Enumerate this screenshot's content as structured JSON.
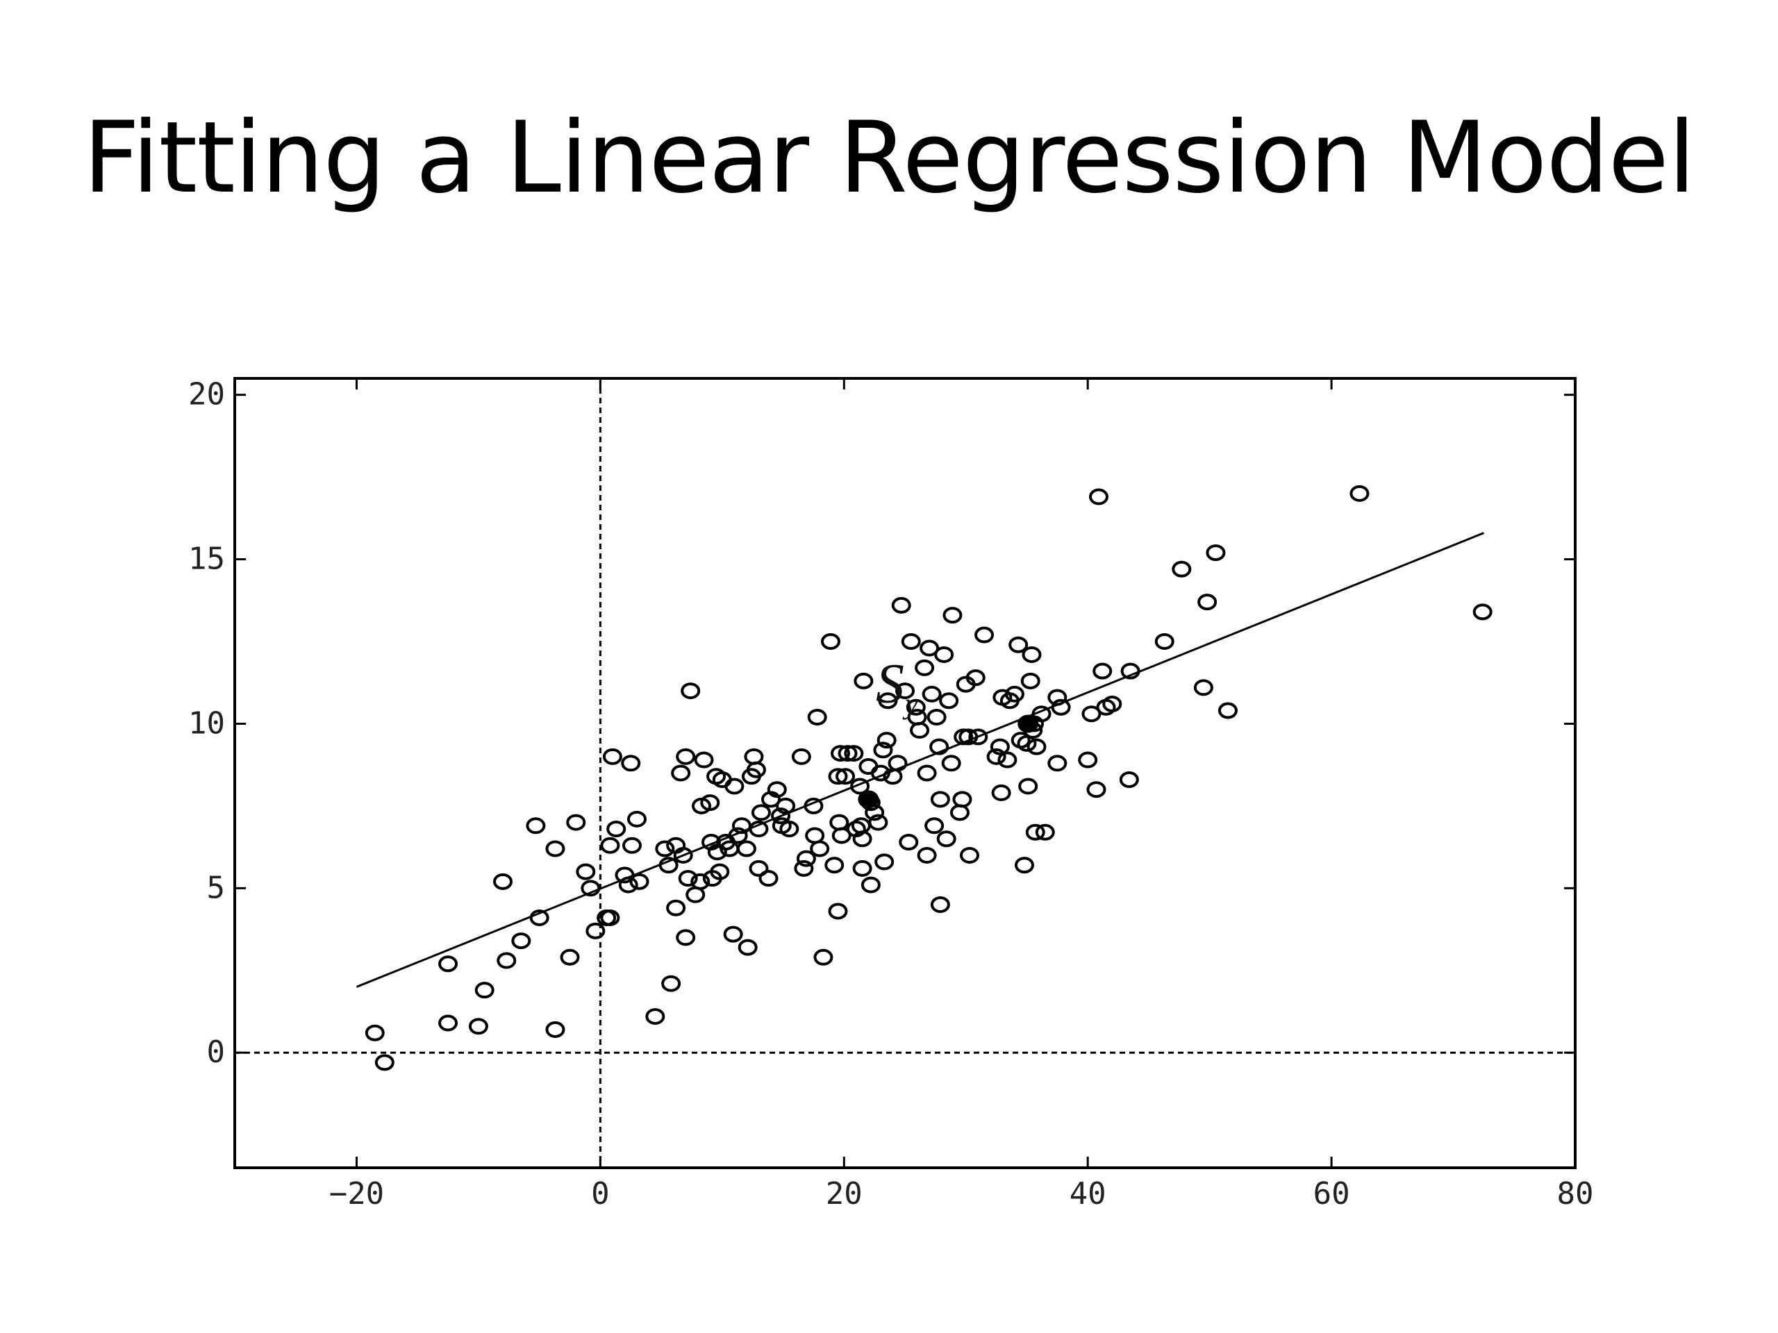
{
  "slide": {
    "title": "Fitting a Linear Regression Model"
  },
  "chart_data": {
    "type": "scatter",
    "xlim": [
      -30,
      80
    ],
    "ylim": [
      -3.5,
      20.5
    ],
    "x_ticks": [
      -20,
      0,
      20,
      40,
      60,
      80
    ],
    "y_ticks": [
      0,
      5,
      10,
      15,
      20
    ],
    "grid": false,
    "reference_lines": {
      "x": 0,
      "y": 0,
      "style": "dotted"
    },
    "annotation": {
      "text": "S",
      "subscript": "y",
      "x": 25,
      "y": 11.5
    },
    "regression_line": {
      "x1": -20,
      "y1": 2.0,
      "x2": 72.5,
      "y2": 15.8
    },
    "series": [
      {
        "points": [
          [
            -18.5,
            0.6
          ],
          [
            -17.7,
            -0.3
          ],
          [
            -12.5,
            2.7
          ],
          [
            -12.5,
            0.9
          ],
          [
            -10.0,
            0.8
          ],
          [
            -9.5,
            1.9
          ],
          [
            -8.0,
            5.2
          ],
          [
            -7.7,
            2.8
          ],
          [
            -6.5,
            3.4
          ],
          [
            -5.3,
            6.9
          ],
          [
            -5.0,
            4.1
          ],
          [
            -3.7,
            6.2
          ],
          [
            -3.7,
            0.7
          ],
          [
            -2.5,
            2.9
          ],
          [
            -2.0,
            7.0
          ],
          [
            -1.2,
            5.5
          ],
          [
            -0.8,
            5.0
          ],
          [
            -0.4,
            3.7
          ],
          [
            0.5,
            4.1
          ],
          [
            0.8,
            4.1
          ],
          [
            0.8,
            6.3
          ],
          [
            1.0,
            9.0
          ],
          [
            1.3,
            6.8
          ],
          [
            2.0,
            5.4
          ],
          [
            2.3,
            5.1
          ],
          [
            2.5,
            8.8
          ],
          [
            2.6,
            6.3
          ],
          [
            3.0,
            7.1
          ],
          [
            3.2,
            5.2
          ],
          [
            4.5,
            1.1
          ],
          [
            5.3,
            6.2
          ],
          [
            5.6,
            5.7
          ],
          [
            5.8,
            2.1
          ],
          [
            6.2,
            4.4
          ],
          [
            6.2,
            6.3
          ],
          [
            6.6,
            8.5
          ],
          [
            6.8,
            6.0
          ],
          [
            7.0,
            3.5
          ],
          [
            7.0,
            9.0
          ],
          [
            7.2,
            5.3
          ],
          [
            7.4,
            11.0
          ],
          [
            7.8,
            4.8
          ],
          [
            8.2,
            5.2
          ],
          [
            8.3,
            7.5
          ],
          [
            8.5,
            8.9
          ],
          [
            9.0,
            7.6
          ],
          [
            9.1,
            6.4
          ],
          [
            9.2,
            5.3
          ],
          [
            9.5,
            8.4
          ],
          [
            9.6,
            6.1
          ],
          [
            9.8,
            5.5
          ],
          [
            10.0,
            8.3
          ],
          [
            10.3,
            6.4
          ],
          [
            10.6,
            6.2
          ],
          [
            10.9,
            3.6
          ],
          [
            11.0,
            8.1
          ],
          [
            11.3,
            6.6
          ],
          [
            11.6,
            6.9
          ],
          [
            12.0,
            6.2
          ],
          [
            12.1,
            3.2
          ],
          [
            12.4,
            8.4
          ],
          [
            12.6,
            9.0
          ],
          [
            12.8,
            8.6
          ],
          [
            13.0,
            5.6
          ],
          [
            13.0,
            6.8
          ],
          [
            13.2,
            7.3
          ],
          [
            13.8,
            5.3
          ],
          [
            14.0,
            7.7
          ],
          [
            14.5,
            8.0
          ],
          [
            14.8,
            7.2
          ],
          [
            14.9,
            6.9
          ],
          [
            15.2,
            7.5
          ],
          [
            15.5,
            6.8
          ],
          [
            16.5,
            9.0
          ],
          [
            16.7,
            5.6
          ],
          [
            16.9,
            5.9
          ],
          [
            17.5,
            7.5
          ],
          [
            17.6,
            6.6
          ],
          [
            17.8,
            10.2
          ],
          [
            18.0,
            6.2
          ],
          [
            18.3,
            2.9
          ],
          [
            18.9,
            12.5
          ],
          [
            19.2,
            5.7
          ],
          [
            19.5,
            4.3
          ],
          [
            19.5,
            8.4
          ],
          [
            19.6,
            7.0
          ],
          [
            19.7,
            9.1
          ],
          [
            19.8,
            6.6
          ],
          [
            20.1,
            8.4
          ],
          [
            20.3,
            9.1
          ],
          [
            20.8,
            9.1
          ],
          [
            21.0,
            6.8
          ],
          [
            21.3,
            8.1
          ],
          [
            21.4,
            6.9
          ],
          [
            21.5,
            6.5
          ],
          [
            21.5,
            5.6
          ],
          [
            21.6,
            11.3
          ],
          [
            22.0,
            8.7
          ],
          [
            22.2,
            7.6
          ],
          [
            22.2,
            5.1
          ],
          [
            22.5,
            7.3
          ],
          [
            22.8,
            7.0
          ],
          [
            23.0,
            8.5
          ],
          [
            23.2,
            9.2
          ],
          [
            23.3,
            5.8
          ],
          [
            23.5,
            9.5
          ],
          [
            23.6,
            10.7
          ],
          [
            24.0,
            8.4
          ],
          [
            24.4,
            8.8
          ],
          [
            24.7,
            13.6
          ],
          [
            25.0,
            11.0
          ],
          [
            25.3,
            6.4
          ],
          [
            25.5,
            12.5
          ],
          [
            25.9,
            10.5
          ],
          [
            26.0,
            10.2
          ],
          [
            26.2,
            9.8
          ],
          [
            26.6,
            11.7
          ],
          [
            26.8,
            8.5
          ],
          [
            26.8,
            6.0
          ],
          [
            27.0,
            12.3
          ],
          [
            27.2,
            10.9
          ],
          [
            27.4,
            6.9
          ],
          [
            27.6,
            10.2
          ],
          [
            27.8,
            9.3
          ],
          [
            27.9,
            4.5
          ],
          [
            27.9,
            7.7
          ],
          [
            28.2,
            12.1
          ],
          [
            28.4,
            6.5
          ],
          [
            28.6,
            10.7
          ],
          [
            28.8,
            8.8
          ],
          [
            28.9,
            13.3
          ],
          [
            29.5,
            7.3
          ],
          [
            29.7,
            7.7
          ],
          [
            29.8,
            9.6
          ],
          [
            30.0,
            11.2
          ],
          [
            30.2,
            9.6
          ],
          [
            30.3,
            6.0
          ],
          [
            30.8,
            11.4
          ],
          [
            31.0,
            9.6
          ],
          [
            31.5,
            12.7
          ],
          [
            32.5,
            9.0
          ],
          [
            32.8,
            9.3
          ],
          [
            32.9,
            7.9
          ],
          [
            33.0,
            10.8
          ],
          [
            33.4,
            8.9
          ],
          [
            33.6,
            10.7
          ],
          [
            34.0,
            10.9
          ],
          [
            34.3,
            12.4
          ],
          [
            34.5,
            9.5
          ],
          [
            34.8,
            5.7
          ],
          [
            35.0,
            9.4
          ],
          [
            35.1,
            8.1
          ],
          [
            35.3,
            11.3
          ],
          [
            35.4,
            12.1
          ],
          [
            35.5,
            9.8
          ],
          [
            35.6,
            10.0
          ],
          [
            35.7,
            6.7
          ],
          [
            35.8,
            9.3
          ],
          [
            36.2,
            10.3
          ],
          [
            36.5,
            6.7
          ],
          [
            37.5,
            8.8
          ],
          [
            37.5,
            10.8
          ],
          [
            37.8,
            10.5
          ],
          [
            40.0,
            8.9
          ],
          [
            40.3,
            10.3
          ],
          [
            40.7,
            8.0
          ],
          [
            40.9,
            16.9
          ],
          [
            41.2,
            11.6
          ],
          [
            41.5,
            10.5
          ],
          [
            42.0,
            10.6
          ],
          [
            43.4,
            8.3
          ],
          [
            43.5,
            11.6
          ],
          [
            46.3,
            12.5
          ],
          [
            47.7,
            14.7
          ],
          [
            49.5,
            11.1
          ],
          [
            49.8,
            13.7
          ],
          [
            50.5,
            15.2
          ],
          [
            51.5,
            10.4
          ],
          [
            62.3,
            17.0
          ],
          [
            72.4,
            13.4
          ]
        ],
        "solid_points": [
          [
            22.0,
            7.7
          ],
          [
            35.1,
            10.0
          ]
        ]
      }
    ]
  }
}
